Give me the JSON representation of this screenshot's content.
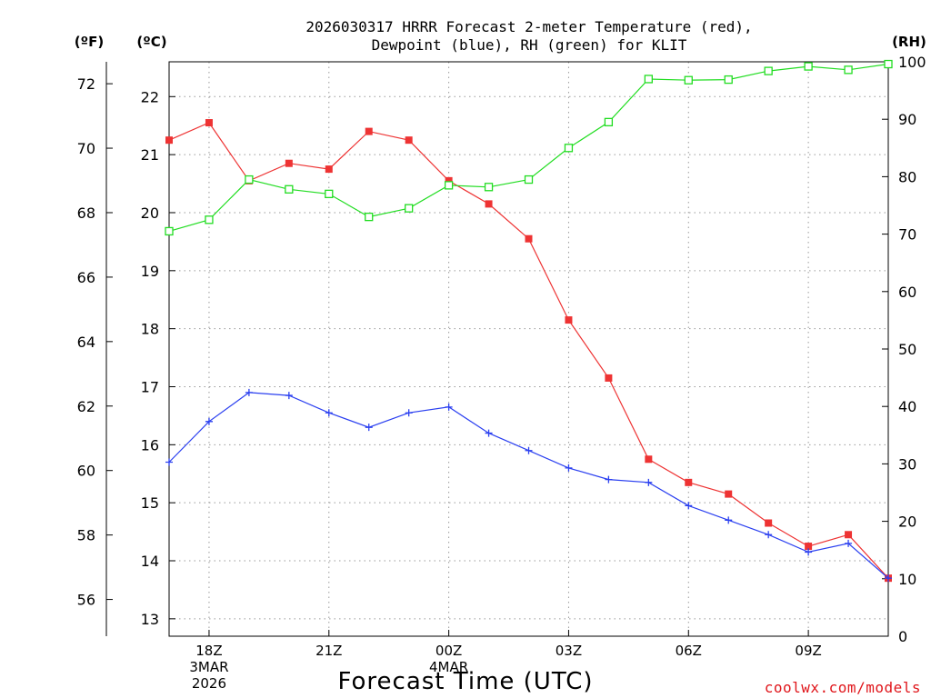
{
  "chart_data": {
    "type": "line",
    "title_lines": [
      "2026030317 HRRR Forecast 2-meter Temperature (red),",
      "Dewpoint (blue), RH (green) for KLIT"
    ],
    "unit_labels": {
      "fahrenheit": "(ºF)",
      "celsius": "(ºC)",
      "rh": "(RH)"
    },
    "xlabel": "Forecast Time (UTC)",
    "credit": "coolwx.com/models",
    "x_hours": [
      0,
      1,
      2,
      3,
      4,
      5,
      6,
      7,
      8,
      9,
      10,
      11,
      12,
      13,
      14,
      15,
      16,
      17,
      18
    ],
    "x_ticks": [
      {
        "hour": 1,
        "lines": [
          "18Z",
          "3MAR",
          "2026"
        ]
      },
      {
        "hour": 4,
        "lines": [
          "21Z"
        ]
      },
      {
        "hour": 7,
        "lines": [
          "00Z",
          "4MAR"
        ]
      },
      {
        "hour": 10,
        "lines": [
          "03Z"
        ]
      },
      {
        "hour": 13,
        "lines": [
          "06Z"
        ]
      },
      {
        "hour": 16,
        "lines": [
          "09Z"
        ]
      }
    ],
    "celsius_axis": {
      "min": 12.7,
      "max": 22.6,
      "ticks": [
        13,
        14,
        15,
        16,
        17,
        18,
        19,
        20,
        21,
        22
      ]
    },
    "fahrenheit_ticks": [
      56,
      58,
      60,
      62,
      64,
      66,
      68,
      70,
      72
    ],
    "rh_axis": {
      "min": 0,
      "max": 100,
      "ticks": [
        0,
        10,
        20,
        30,
        40,
        50,
        60,
        70,
        80,
        90,
        100
      ]
    },
    "series": [
      {
        "name": "Temperature",
        "axis": "celsius",
        "color": "#ee3333",
        "marker": "filled-square",
        "values": [
          21.25,
          21.55,
          20.55,
          20.85,
          20.75,
          21.4,
          21.25,
          20.55,
          20.15,
          19.55,
          18.15,
          17.15,
          15.75,
          15.35,
          15.15,
          14.65,
          14.25,
          14.45,
          13.7
        ]
      },
      {
        "name": "Dewpoint",
        "axis": "celsius",
        "color": "#2a3ff0",
        "marker": "plus",
        "values": [
          15.7,
          16.4,
          16.9,
          16.85,
          16.55,
          16.3,
          16.55,
          16.65,
          16.2,
          15.9,
          15.6,
          15.4,
          15.35,
          14.95,
          14.7,
          14.45,
          14.15,
          14.3,
          13.7
        ]
      },
      {
        "name": "RH",
        "axis": "rh",
        "color": "#22dd22",
        "marker": "open-square",
        "values": [
          70.5,
          72.5,
          79.5,
          77.8,
          77,
          73,
          74.5,
          78.5,
          78.2,
          79.5,
          85,
          89.5,
          97,
          96.8,
          96.9,
          98.4,
          99.2,
          98.6,
          99.6
        ]
      }
    ]
  }
}
